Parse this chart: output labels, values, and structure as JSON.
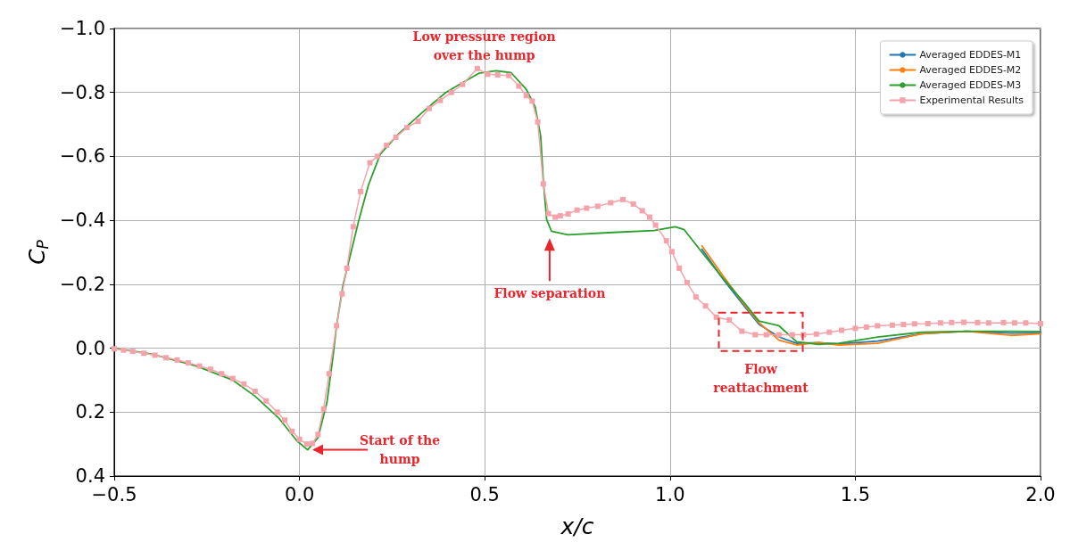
{
  "chart_data": {
    "type": "line",
    "xlabel": "x/c",
    "ylabel": "C$_{P}$",
    "x": [
      -0.5,
      -0.4,
      -0.28,
      -0.18,
      -0.12,
      -0.055,
      -0.007,
      0.022,
      0.05,
      0.074,
      0.09,
      0.1,
      0.118,
      0.137,
      0.16,
      0.186,
      0.218,
      0.267,
      0.33,
      0.395,
      0.484,
      0.53,
      0.571,
      0.612,
      0.636,
      0.651,
      0.658,
      0.667,
      0.68,
      0.724,
      0.845,
      0.957,
      1.014,
      1.038,
      1.086,
      1.142,
      1.198,
      1.24,
      1.294,
      1.342,
      1.4,
      1.455,
      1.56,
      1.68,
      1.8,
      1.92,
      2.0
    ],
    "series": [
      {
        "name": "Averaged EDDES-M1",
        "color": "#1f77b4",
        "values": [
          null,
          null,
          null,
          null,
          null,
          null,
          null,
          null,
          null,
          null,
          null,
          null,
          null,
          null,
          null,
          null,
          null,
          null,
          null,
          null,
          null,
          null,
          null,
          null,
          null,
          null,
          null,
          null,
          null,
          null,
          null,
          null,
          null,
          null,
          -0.31,
          -0.218,
          -0.135,
          -0.075,
          -0.035,
          -0.015,
          -0.017,
          -0.013,
          -0.022,
          -0.045,
          -0.053,
          -0.047,
          -0.048
        ]
      },
      {
        "name": "Averaged EDDES-M2",
        "color": "#ff7f0e",
        "values": [
          null,
          null,
          null,
          null,
          null,
          null,
          null,
          null,
          null,
          null,
          null,
          null,
          null,
          null,
          null,
          null,
          null,
          null,
          null,
          null,
          null,
          null,
          null,
          null,
          null,
          null,
          null,
          null,
          null,
          null,
          null,
          null,
          null,
          null,
          -0.32,
          -0.228,
          -0.14,
          -0.08,
          -0.025,
          -0.01,
          -0.018,
          -0.01,
          -0.015,
          -0.045,
          -0.053,
          -0.04,
          -0.045
        ]
      },
      {
        "name": "Averaged EDDES-M3",
        "color": "#2ca02c",
        "values": [
          0,
          0.018,
          0.055,
          0.1,
          0.15,
          0.22,
          0.29,
          0.318,
          0.28,
          0.17,
          0.03,
          -0.07,
          -0.2,
          -0.29,
          -0.4,
          -0.51,
          -0.607,
          -0.67,
          -0.736,
          -0.8,
          -0.86,
          -0.868,
          -0.862,
          -0.81,
          -0.755,
          -0.663,
          -0.524,
          -0.403,
          -0.366,
          -0.355,
          -0.362,
          -0.368,
          -0.38,
          -0.371,
          -0.3,
          -0.22,
          -0.145,
          -0.085,
          -0.07,
          -0.02,
          -0.012,
          -0.015,
          -0.035,
          -0.05,
          -0.053,
          -0.053,
          -0.052
        ]
      },
      {
        "name": "Experimental Results",
        "color": "#f4a3aa",
        "marker": "square",
        "x": [
          -0.5,
          -0.475,
          -0.45,
          -0.42,
          -0.39,
          -0.36,
          -0.33,
          -0.3,
          -0.27,
          -0.24,
          -0.21,
          -0.18,
          -0.15,
          -0.12,
          -0.09,
          -0.06,
          -0.04,
          -0.02,
          0.0,
          0.02,
          0.035,
          0.05,
          0.065,
          0.08,
          0.1,
          0.115,
          0.128,
          0.145,
          0.165,
          0.19,
          0.21,
          0.235,
          0.26,
          0.29,
          0.32,
          0.35,
          0.38,
          0.41,
          0.44,
          0.48,
          0.508,
          0.535,
          0.565,
          0.592,
          0.612,
          0.628,
          0.643,
          0.658,
          0.672,
          0.69,
          0.704,
          0.725,
          0.749,
          0.775,
          0.805,
          0.84,
          0.873,
          0.901,
          0.925,
          0.945,
          0.961,
          0.99,
          1.005,
          1.025,
          1.046,
          1.07,
          1.096,
          1.125,
          1.16,
          1.194,
          1.23,
          1.26,
          1.294,
          1.33,
          1.36,
          1.395,
          1.43,
          1.463,
          1.5,
          1.53,
          1.56,
          1.6,
          1.63,
          1.66,
          1.696,
          1.73,
          1.76,
          1.793,
          1.83,
          1.86,
          1.9,
          1.93,
          1.96,
          2.0
        ],
        "values": [
          0.002,
          0.006,
          0.01,
          0.016,
          0.022,
          0.03,
          0.037,
          0.046,
          0.056,
          0.066,
          0.08,
          0.095,
          0.112,
          0.135,
          0.165,
          0.2,
          0.225,
          0.26,
          0.285,
          0.3,
          0.298,
          0.27,
          0.19,
          0.08,
          -0.07,
          -0.17,
          -0.25,
          -0.38,
          -0.49,
          -0.58,
          -0.6,
          -0.635,
          -0.66,
          -0.69,
          -0.71,
          -0.75,
          -0.775,
          -0.8,
          -0.825,
          -0.875,
          -0.857,
          -0.855,
          -0.853,
          -0.82,
          -0.79,
          -0.773,
          -0.708,
          -0.514,
          -0.421,
          -0.41,
          -0.414,
          -0.42,
          -0.432,
          -0.438,
          -0.444,
          -0.455,
          -0.465,
          -0.451,
          -0.43,
          -0.41,
          -0.385,
          -0.336,
          -0.302,
          -0.25,
          -0.205,
          -0.16,
          -0.132,
          -0.097,
          -0.088,
          -0.053,
          -0.042,
          -0.042,
          -0.042,
          -0.042,
          -0.042,
          -0.044,
          -0.05,
          -0.056,
          -0.062,
          -0.066,
          -0.07,
          -0.072,
          -0.074,
          -0.076,
          -0.077,
          -0.079,
          -0.08,
          -0.081,
          -0.08,
          -0.079,
          -0.08,
          -0.079,
          -0.079,
          -0.077
        ]
      }
    ],
    "marker": "none",
    "line_style": "solid",
    "grid": true,
    "legend": "top right",
    "xlim": [
      -0.5,
      2.0
    ],
    "xticks": [
      {
        "value": -0.5,
        "label": "−0.5"
      },
      {
        "value": 0,
        "label": "0.0"
      },
      {
        "value": 0.5,
        "label": "0.5"
      },
      {
        "value": 1,
        "label": "1.0"
      },
      {
        "value": 1.5,
        "label": "1.5"
      },
      {
        "value": 2,
        "label": "2.0"
      }
    ],
    "ylim": [
      0.4,
      -1.0
    ],
    "yticks": [
      {
        "value": -1,
        "label": "−1.0"
      },
      {
        "value": -0.8,
        "label": "−0.8"
      },
      {
        "value": -0.6,
        "label": "−0.6"
      },
      {
        "value": -0.4,
        "label": "−0.4"
      },
      {
        "value": -0.2,
        "label": "−0.2"
      },
      {
        "value": 0,
        "label": "0.0"
      },
      {
        "value": 0.2,
        "label": "0.2"
      },
      {
        "value": 0.4,
        "label": "0.4"
      }
    ],
    "annotations": [
      {
        "text": "Low pressure region\nover the hump",
        "x": 0.53,
        "y": -0.868
      },
      {
        "text": "Start of the\nhump",
        "x": 0.03,
        "y": 0.318
      },
      {
        "text": "Flow separation",
        "x": 0.675,
        "y": -0.355
      },
      {
        "text": "Flow\nreattachment",
        "x": 1.245,
        "y": -0.05
      }
    ]
  }
}
